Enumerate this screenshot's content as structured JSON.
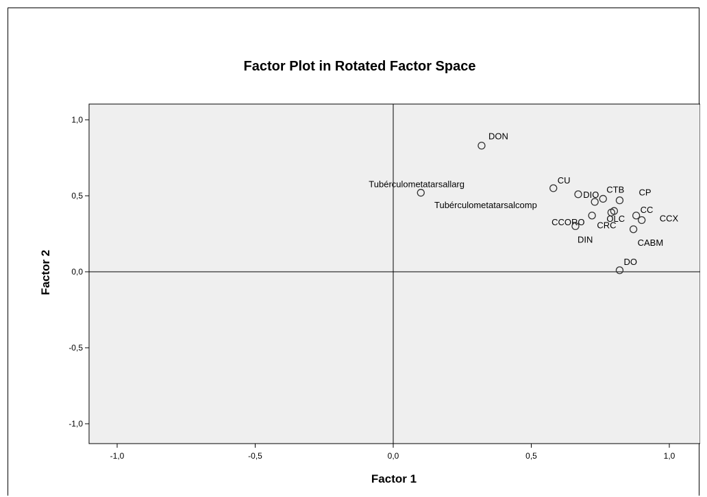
{
  "chart_data": {
    "type": "scatter",
    "title": "Factor Plot in Rotated Factor Space",
    "xlabel": "Factor 1",
    "ylabel": "Factor 2",
    "xlim": [
      -1.1,
      1.1
    ],
    "ylim": [
      -1.1,
      1.1
    ],
    "xticks": [
      -1.0,
      -0.5,
      0.0,
      0.5,
      1.0
    ],
    "yticks": [
      -1.0,
      -0.5,
      0.0,
      0.5,
      1.0
    ],
    "xtick_labels": [
      "-1,0",
      "-0,5",
      "0,0",
      "0,5",
      "1,0"
    ],
    "ytick_labels": [
      "-1,0",
      "-0,5",
      "0,0",
      "0,5",
      "1,0"
    ],
    "grid": false,
    "reference_lines": {
      "x": 0,
      "y": 0
    },
    "plot_background": "#efefef",
    "marker_color": "#333333",
    "points": [
      {
        "x": 0.32,
        "y": 0.83,
        "label": "DON"
      },
      {
        "x": 0.1,
        "y": 0.52,
        "label": "Tubérculometatarsallarg"
      },
      {
        "x": 0.58,
        "y": 0.55,
        "label": "CU"
      },
      {
        "x": 0.67,
        "y": 0.51,
        "label": "Tubérculometatarsalcomp"
      },
      {
        "x": 0.73,
        "y": 0.46,
        "label": "DIO"
      },
      {
        "x": 0.76,
        "y": 0.48,
        "label": "CTB"
      },
      {
        "x": 0.82,
        "y": 0.47,
        "label": "CP"
      },
      {
        "x": 0.88,
        "y": 0.37,
        "label": "CC"
      },
      {
        "x": 0.9,
        "y": 0.34,
        "label": "CCX"
      },
      {
        "x": 0.8,
        "y": 0.4,
        "label": "OLC"
      },
      {
        "x": 0.79,
        "y": 0.39,
        "label": "CRC"
      },
      {
        "x": 0.72,
        "y": 0.37,
        "label": "CCORO"
      },
      {
        "x": 0.66,
        "y": 0.3,
        "label": "DIN"
      },
      {
        "x": 0.87,
        "y": 0.28,
        "label": "CABM"
      },
      {
        "x": 0.82,
        "y": 0.01,
        "label": "DO"
      }
    ]
  }
}
